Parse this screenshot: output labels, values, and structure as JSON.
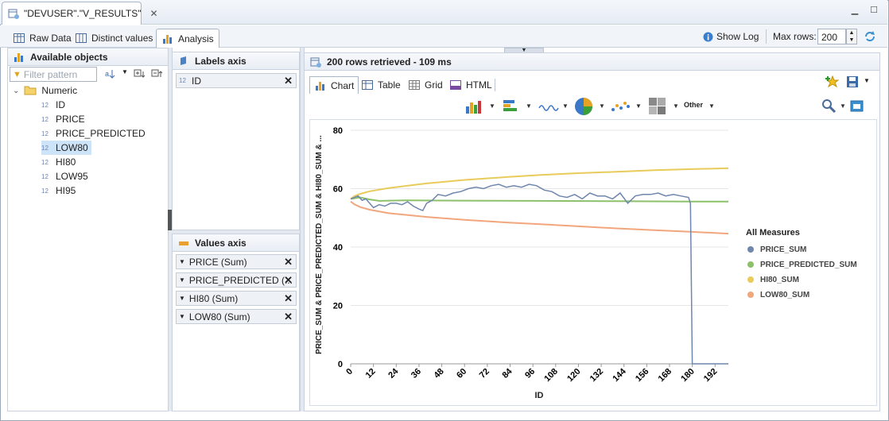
{
  "editor_tab": {
    "title": "\"DEVUSER\".\"V_RESULTS\""
  },
  "subtabs": [
    {
      "label": "Raw Data"
    },
    {
      "label": "Distinct values"
    },
    {
      "label": "Analysis"
    }
  ],
  "toolbar": {
    "show_log": "Show Log",
    "max_rows_label": "Max rows:",
    "max_rows_value": "200"
  },
  "objects": {
    "title": "Available objects",
    "filter_placeholder": "Filter pattern",
    "folder": "Numeric",
    "type_tag": "12",
    "items": [
      "ID",
      "PRICE",
      "PRICE_PREDICTED",
      "LOW80",
      "HI80",
      "LOW95",
      "HI95"
    ],
    "selected": "LOW80"
  },
  "labels_axis": {
    "title": "Labels axis",
    "items": [
      "ID"
    ]
  },
  "values_axis": {
    "title": "Values axis",
    "items": [
      "PRICE (Sum)",
      "PRICE_PREDICTED (...",
      "HI80 (Sum)",
      "LOW80 (Sum)"
    ]
  },
  "status": {
    "text": "200 rows retrieved - 109 ms"
  },
  "chart_tabs": [
    {
      "label": "Chart"
    },
    {
      "label": "Table"
    },
    {
      "label": "Grid"
    },
    {
      "label": "HTML"
    }
  ],
  "chart_toolbar": {
    "other": "Other"
  },
  "colors": {
    "price": "#6f86ad",
    "predicted": "#8cc06a",
    "hi80": "#e8cb5a",
    "low80": "#f1a67c"
  },
  "chart_data": {
    "type": "line",
    "title": "",
    "xlabel": "ID",
    "ylabel": "PRICE_SUM & PRICE_PREDICTED_SUM & HI80_SUM & ...",
    "xlim": [
      0,
      199
    ],
    "ylim": [
      0,
      80
    ],
    "yticks": [
      0,
      20,
      40,
      60,
      80
    ],
    "xticks": [
      0,
      12,
      24,
      36,
      48,
      60,
      72,
      84,
      96,
      108,
      120,
      132,
      144,
      156,
      168,
      180,
      192
    ],
    "legend_title": "All Measures",
    "legend_position": "right",
    "series": [
      {
        "name": "PRICE_SUM",
        "color": "#6f86ad",
        "x": [
          0,
          4,
          6,
          8,
          10,
          12,
          15,
          18,
          21,
          24,
          27,
          30,
          33,
          36,
          38,
          40,
          43,
          46,
          50,
          54,
          58,
          62,
          66,
          70,
          74,
          78,
          82,
          86,
          90,
          94,
          98,
          102,
          106,
          110,
          114,
          118,
          122,
          126,
          130,
          134,
          138,
          142,
          146,
          150,
          154,
          158,
          162,
          166,
          170,
          174,
          178,
          179,
          180,
          186,
          192,
          199
        ],
        "y": [
          56.5,
          57.5,
          56,
          56.5,
          55,
          53.5,
          54.5,
          54,
          55,
          55,
          54.5,
          55.5,
          54,
          53,
          52.5,
          55,
          56,
          58,
          57.5,
          58.5,
          59,
          60,
          60.5,
          60,
          61,
          61.5,
          60.5,
          61,
          60.5,
          61.5,
          61,
          59.5,
          59,
          57.5,
          57,
          58,
          56.5,
          58.5,
          57.5,
          57.5,
          56.5,
          58.5,
          55,
          57.5,
          58,
          58,
          58.5,
          57.5,
          58,
          57.5,
          57,
          55,
          0,
          0,
          0,
          0
        ]
      },
      {
        "name": "PRICE_PREDICTED_SUM",
        "color": "#8cc06a",
        "x": [
          0,
          5,
          10,
          15,
          20,
          30,
          60,
          100,
          140,
          180,
          199
        ],
        "y": [
          56.5,
          57,
          56.3,
          55.8,
          55.9,
          56,
          55.9,
          55.8,
          55.7,
          55.6,
          55.6
        ]
      },
      {
        "name": "HI80_SUM",
        "color": "#e8cb5a",
        "x": [
          0,
          2,
          5,
          10,
          20,
          40,
          60,
          80,
          100,
          120,
          140,
          160,
          180,
          199
        ],
        "y": [
          56.5,
          57.5,
          58.2,
          59.1,
          60.2,
          61.8,
          63,
          63.9,
          64.7,
          65.3,
          65.8,
          66.3,
          66.7,
          67
        ]
      },
      {
        "name": "LOW80_SUM",
        "color": "#f1a67c",
        "x": [
          0,
          2,
          5,
          10,
          20,
          40,
          60,
          80,
          100,
          120,
          140,
          160,
          180,
          199
        ],
        "y": [
          55.6,
          54.6,
          53.7,
          52.8,
          51.6,
          50.3,
          49.3,
          48.5,
          47.8,
          47.1,
          46.4,
          45.8,
          45.2,
          44.6
        ]
      }
    ]
  }
}
